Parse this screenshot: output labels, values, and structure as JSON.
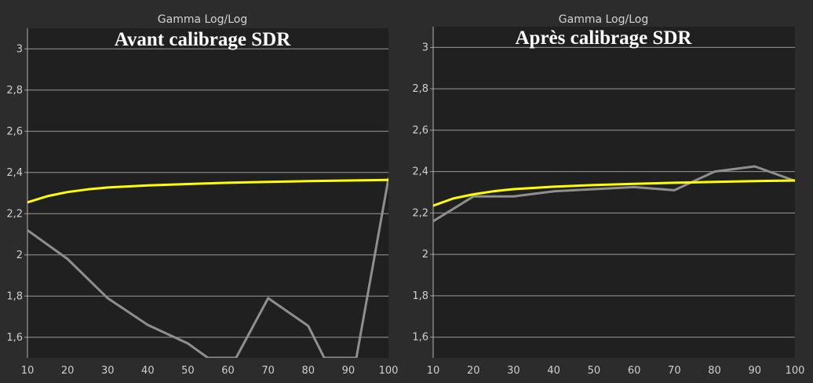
{
  "colors": {
    "page_background": "#2c2c2c",
    "plot_background": "#202020",
    "grid": "#9a9a9a",
    "target_series": "#ffff00",
    "measured_series": "#8f8f8f",
    "text": "#d4d4d4"
  },
  "chart_data": [
    {
      "type": "line",
      "title": "Gamma Log/Log",
      "overlay_label": "Avant calibrage SDR",
      "xlim": [
        10,
        100
      ],
      "ylim": [
        1.5,
        3.1
      ],
      "x_ticks": [
        10,
        20,
        30,
        40,
        50,
        60,
        70,
        80,
        90,
        100
      ],
      "x_tick_labels": [
        "10",
        "20",
        "30",
        "40",
        "50",
        "60",
        "70",
        "80",
        "90",
        "100"
      ],
      "y_ticks": [
        1.6,
        1.8,
        2.0,
        2.2,
        2.4,
        2.6,
        2.8,
        3.0
      ],
      "y_tick_labels": [
        "1,6",
        "1,8",
        "2",
        "2,2",
        "2,4",
        "2,6",
        "2,8",
        "3"
      ],
      "grid": "horizontal",
      "legend": "none",
      "series": [
        {
          "role": "target",
          "color": "#ffff00",
          "x": [
            10,
            15,
            20,
            25,
            30,
            40,
            50,
            60,
            70,
            80,
            90,
            100
          ],
          "y": [
            2.255,
            2.285,
            2.305,
            2.318,
            2.327,
            2.337,
            2.344,
            2.35,
            2.354,
            2.358,
            2.361,
            2.364
          ]
        },
        {
          "role": "measured",
          "color": "#8f8f8f",
          "x": [
            10,
            20,
            30,
            40,
            50,
            55,
            62,
            70,
            80,
            84,
            92,
            100
          ],
          "y": [
            2.12,
            1.98,
            1.79,
            1.66,
            1.57,
            1.5,
            1.5,
            1.79,
            1.655,
            1.5,
            1.5,
            2.37
          ]
        }
      ]
    },
    {
      "type": "line",
      "title": "Gamma Log/Log",
      "overlay_label": "Après calibrage SDR",
      "xlim": [
        10,
        100
      ],
      "ylim": [
        1.5,
        3.1
      ],
      "x_ticks": [
        10,
        20,
        30,
        40,
        50,
        60,
        70,
        80,
        90,
        100
      ],
      "x_tick_labels": [
        "10",
        "20",
        "30",
        "40",
        "50",
        "60",
        "70",
        "80",
        "90",
        "100"
      ],
      "y_ticks": [
        1.6,
        1.8,
        2.0,
        2.2,
        2.4,
        2.6,
        2.8,
        3.0
      ],
      "y_tick_labels": [
        "1,6",
        "1,8",
        "2",
        "2,2",
        "2,4",
        "2,6",
        "2,8",
        "3"
      ],
      "grid": "horizontal",
      "legend": "none",
      "series": [
        {
          "role": "target",
          "color": "#ffff00",
          "x": [
            10,
            15,
            20,
            25,
            30,
            40,
            50,
            60,
            70,
            80,
            90,
            100
          ],
          "y": [
            2.235,
            2.27,
            2.29,
            2.305,
            2.315,
            2.327,
            2.335,
            2.341,
            2.346,
            2.35,
            2.354,
            2.357
          ]
        },
        {
          "role": "measured",
          "color": "#8f8f8f",
          "x": [
            10,
            20,
            30,
            40,
            50,
            60,
            70,
            80,
            90,
            100
          ],
          "y": [
            2.16,
            2.28,
            2.28,
            2.305,
            2.315,
            2.325,
            2.31,
            2.4,
            2.425,
            2.355
          ]
        }
      ]
    }
  ]
}
